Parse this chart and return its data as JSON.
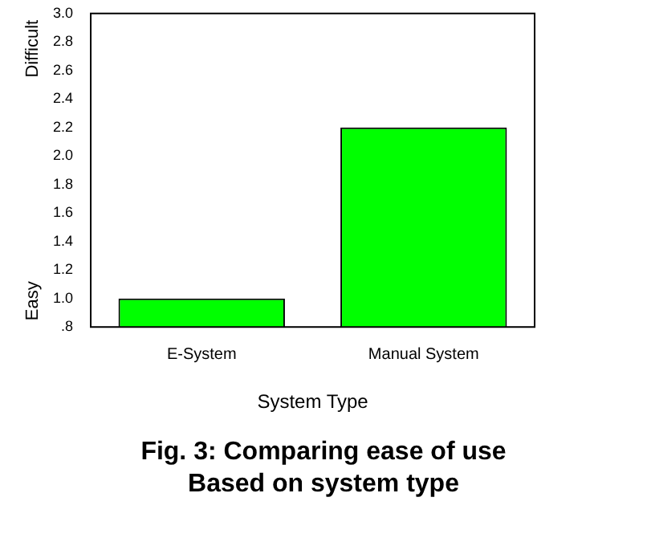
{
  "chart_data": {
    "type": "bar",
    "categories": [
      "E-System",
      "Manual System"
    ],
    "values": [
      1.0,
      2.2
    ],
    "color": "#00ff00",
    "ylim": [
      0.8,
      3.0
    ],
    "yticks": [
      {
        "value": 0.8,
        "label": ".8"
      },
      {
        "value": 1.0,
        "label": "1.0"
      },
      1.2,
      1.4,
      1.6,
      1.8,
      {
        "value": 2.0,
        "label": "2.0"
      },
      2.2,
      2.4,
      2.6,
      2.8,
      {
        "value": 3.0,
        "label": "3.0"
      }
    ],
    "xlabel": "System Type",
    "grid": false,
    "legend": false,
    "title": "Fig. 3: Comparing ease of use\nBased on system type",
    "annotations": [
      "Easy",
      "Difficult"
    ]
  }
}
